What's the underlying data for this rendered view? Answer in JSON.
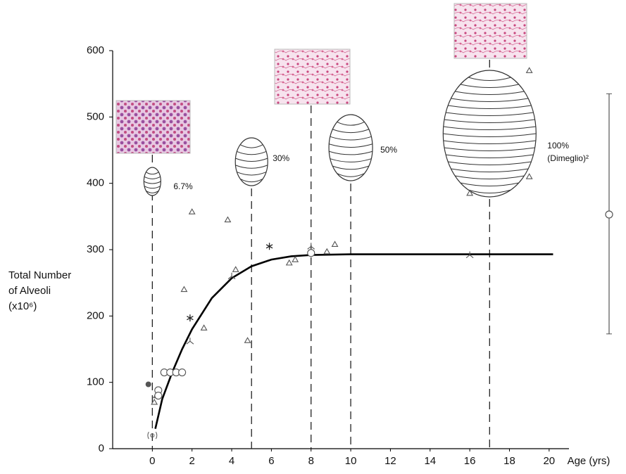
{
  "chart_data": {
    "type": "scatter",
    "x_label": "Age (yrs)",
    "y_label": [
      "Total Number",
      "of Alveoli",
      "(x10⁶)"
    ],
    "xlim": [
      -2,
      21
    ],
    "ylim": [
      0,
      600
    ],
    "xticks": [
      0,
      2,
      4,
      6,
      8,
      10,
      12,
      14,
      16,
      18,
      20
    ],
    "yticks": [
      0,
      100,
      200,
      300,
      400,
      500,
      600
    ],
    "series": [
      {
        "marker": "triangle",
        "color": "#555555",
        "x": [
          0.1,
          0.2,
          1.6,
          2.0,
          2.6,
          3.8,
          4.2,
          4.8,
          6.9,
          7.2,
          8.8,
          9.2,
          16.0,
          19.0,
          19.0
        ],
        "y": [
          70,
          80,
          240,
          357,
          182,
          345,
          270,
          163,
          280,
          285,
          297,
          308,
          385,
          570,
          410
        ]
      },
      {
        "marker": "circle",
        "color": "#555555",
        "x": [
          0.3,
          0.3,
          0.6,
          0.9,
          1.2,
          1.5,
          8.0
        ],
        "y": [
          88,
          80,
          115,
          115,
          115,
          115,
          295
        ]
      },
      {
        "marker": "filled-circle",
        "color": "#555555",
        "x": [
          -0.2
        ],
        "y": [
          97
        ]
      },
      {
        "marker": "asterisk",
        "color": "#222222",
        "x": [
          1.9,
          5.9
        ],
        "y": [
          197,
          305
        ]
      },
      {
        "marker": "fork",
        "color": "#555555",
        "x": [
          1.9,
          4.0,
          8.0,
          16.0
        ],
        "y": [
          162,
          260,
          305,
          292
        ]
      },
      {
        "marker": "paren-circle",
        "color": "#555555",
        "x": [
          0.0
        ],
        "y": [
          20
        ]
      }
    ],
    "fit": {
      "color": "#000000",
      "x": [
        0.15,
        0.5,
        1,
        1.5,
        2,
        3,
        4,
        5,
        6,
        7,
        8,
        10,
        14,
        20.2
      ],
      "y": [
        30,
        75,
        115,
        150,
        180,
        227,
        257,
        275,
        285,
        290,
        292,
        293,
        293,
        293
      ]
    },
    "milestones": [
      {
        "x": 0,
        "label": "6.7%"
      },
      {
        "x": 5,
        "label": "30%"
      },
      {
        "x": 10,
        "label": "50%"
      },
      {
        "x": 17,
        "label": "100%",
        "note": "(Dimeglio)²"
      }
    ],
    "histology_at": [
      0,
      8,
      17
    ],
    "range_bar": {
      "value": 353,
      "low": 173,
      "high": 535
    }
  }
}
